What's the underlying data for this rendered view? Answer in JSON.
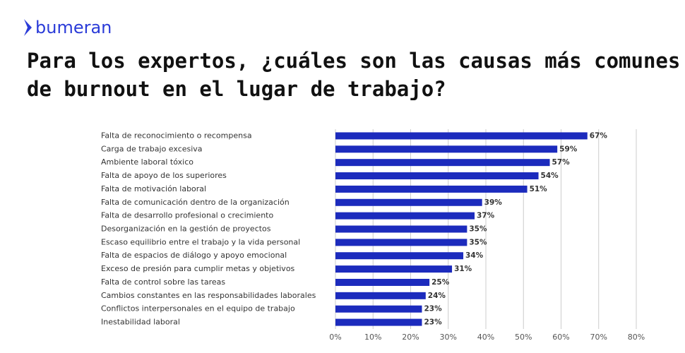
{
  "brand": "bumeran",
  "chart_data": {
    "type": "bar",
    "orientation": "horizontal",
    "title": [
      "Para los expertos, ¿cuáles son las causas más comunes",
      "de burnout en el lugar de trabajo?"
    ],
    "categories": [
      "Falta de reconocimiento o recompensa",
      "Carga de trabajo excesiva",
      "Ambiente laboral tóxico",
      "Falta de apoyo de los superiores",
      "Falta de motivación laboral",
      "Falta de comunicación dentro de la organización",
      "Falta de desarrollo profesional o crecimiento",
      "Desorganización en la gestión de proyectos",
      "Escaso equilibrio entre el trabajo y la vida personal",
      "Falta de espacios de diálogo y apoyo emocional",
      "Exceso de presión para cumplir metas y objetivos",
      "Falta de control sobre las tareas",
      "Cambios constantes en las responsabilidades laborales",
      "Conflictos interpersonales en el equipo de trabajo",
      "Inestabilidad laboral"
    ],
    "values": [
      67,
      59,
      57,
      54,
      51,
      39,
      37,
      35,
      35,
      34,
      31,
      25,
      24,
      23,
      23
    ],
    "value_labels": [
      "67%",
      "59%",
      "57%",
      "54%",
      "51%",
      "39%",
      "37%",
      "35%",
      "35%",
      "34%",
      "31%",
      "25%",
      "24%",
      "23%",
      "23%"
    ],
    "color": "#1c2bbd",
    "xlim": [
      0,
      80
    ],
    "xticks": [
      {
        "value": 0,
        "label": "0%"
      },
      {
        "value": 10,
        "label": "10%"
      },
      {
        "value": 20,
        "label": "20%"
      },
      {
        "value": 30,
        "label": "30%"
      },
      {
        "value": 40,
        "label": "40%"
      },
      {
        "value": 50,
        "label": "50%"
      },
      {
        "value": 60,
        "label": "60%"
      },
      {
        "value": 70,
        "label": "70%"
      },
      {
        "value": 80,
        "label": "80%"
      }
    ],
    "grid": true
  }
}
